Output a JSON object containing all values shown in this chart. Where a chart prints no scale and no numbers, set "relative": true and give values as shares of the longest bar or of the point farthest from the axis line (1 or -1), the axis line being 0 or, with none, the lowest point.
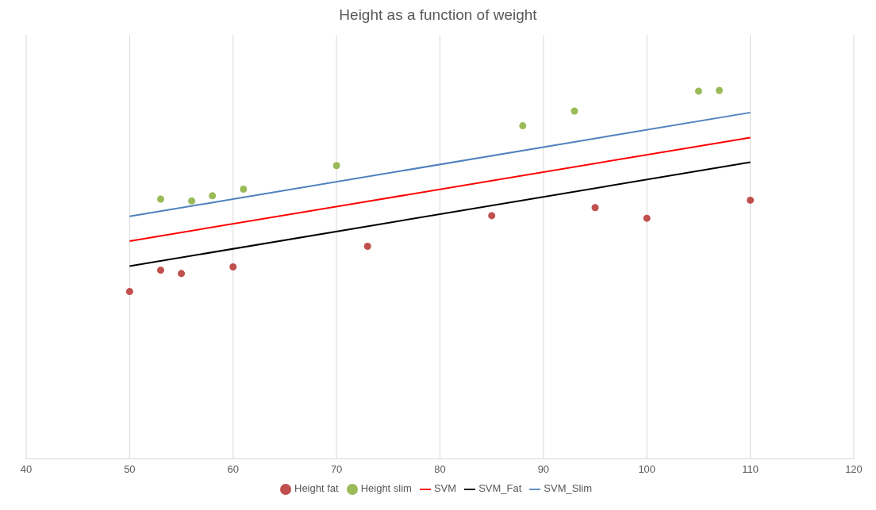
{
  "chart_data": {
    "type": "scatter",
    "title": "Height as a function of weight",
    "relative": true,
    "xlim": [
      40,
      120
    ],
    "xticks": [
      40,
      50,
      60,
      70,
      80,
      90,
      100,
      110,
      120
    ],
    "grid": "x",
    "legend": "bottom",
    "series": [
      {
        "name": "Height fat",
        "marker": "circle",
        "color": "#c0504d",
        "x": [
          50,
          53,
          55,
          60,
          73,
          85,
          95,
          100,
          110
        ],
        "values": [
          0.454,
          0.512,
          0.503,
          0.521,
          0.577,
          0.66,
          0.682,
          0.653,
          0.702
        ]
      },
      {
        "name": "Height slim",
        "marker": "circle",
        "color": "#9bbb59",
        "x": [
          53,
          56,
          58,
          61,
          70,
          88,
          93,
          105,
          107
        ],
        "values": [
          0.705,
          0.7,
          0.714,
          0.732,
          0.796,
          0.904,
          0.944,
          0.998,
          1
        ]
      },
      {
        "name": "SVM",
        "type": "line",
        "color": "#ff0000",
        "x": [
          50,
          110
        ],
        "values": [
          0.591,
          0.872
        ]
      },
      {
        "name": "SVM_Fat",
        "type": "line",
        "color": "#000000",
        "x": [
          50,
          110
        ],
        "values": [
          0.523,
          0.805
        ]
      },
      {
        "name": "SVM_Slim",
        "type": "line",
        "color": "#4f81bd",
        "x": [
          50,
          110
        ],
        "values": [
          0.658,
          0.94
        ]
      }
    ]
  }
}
